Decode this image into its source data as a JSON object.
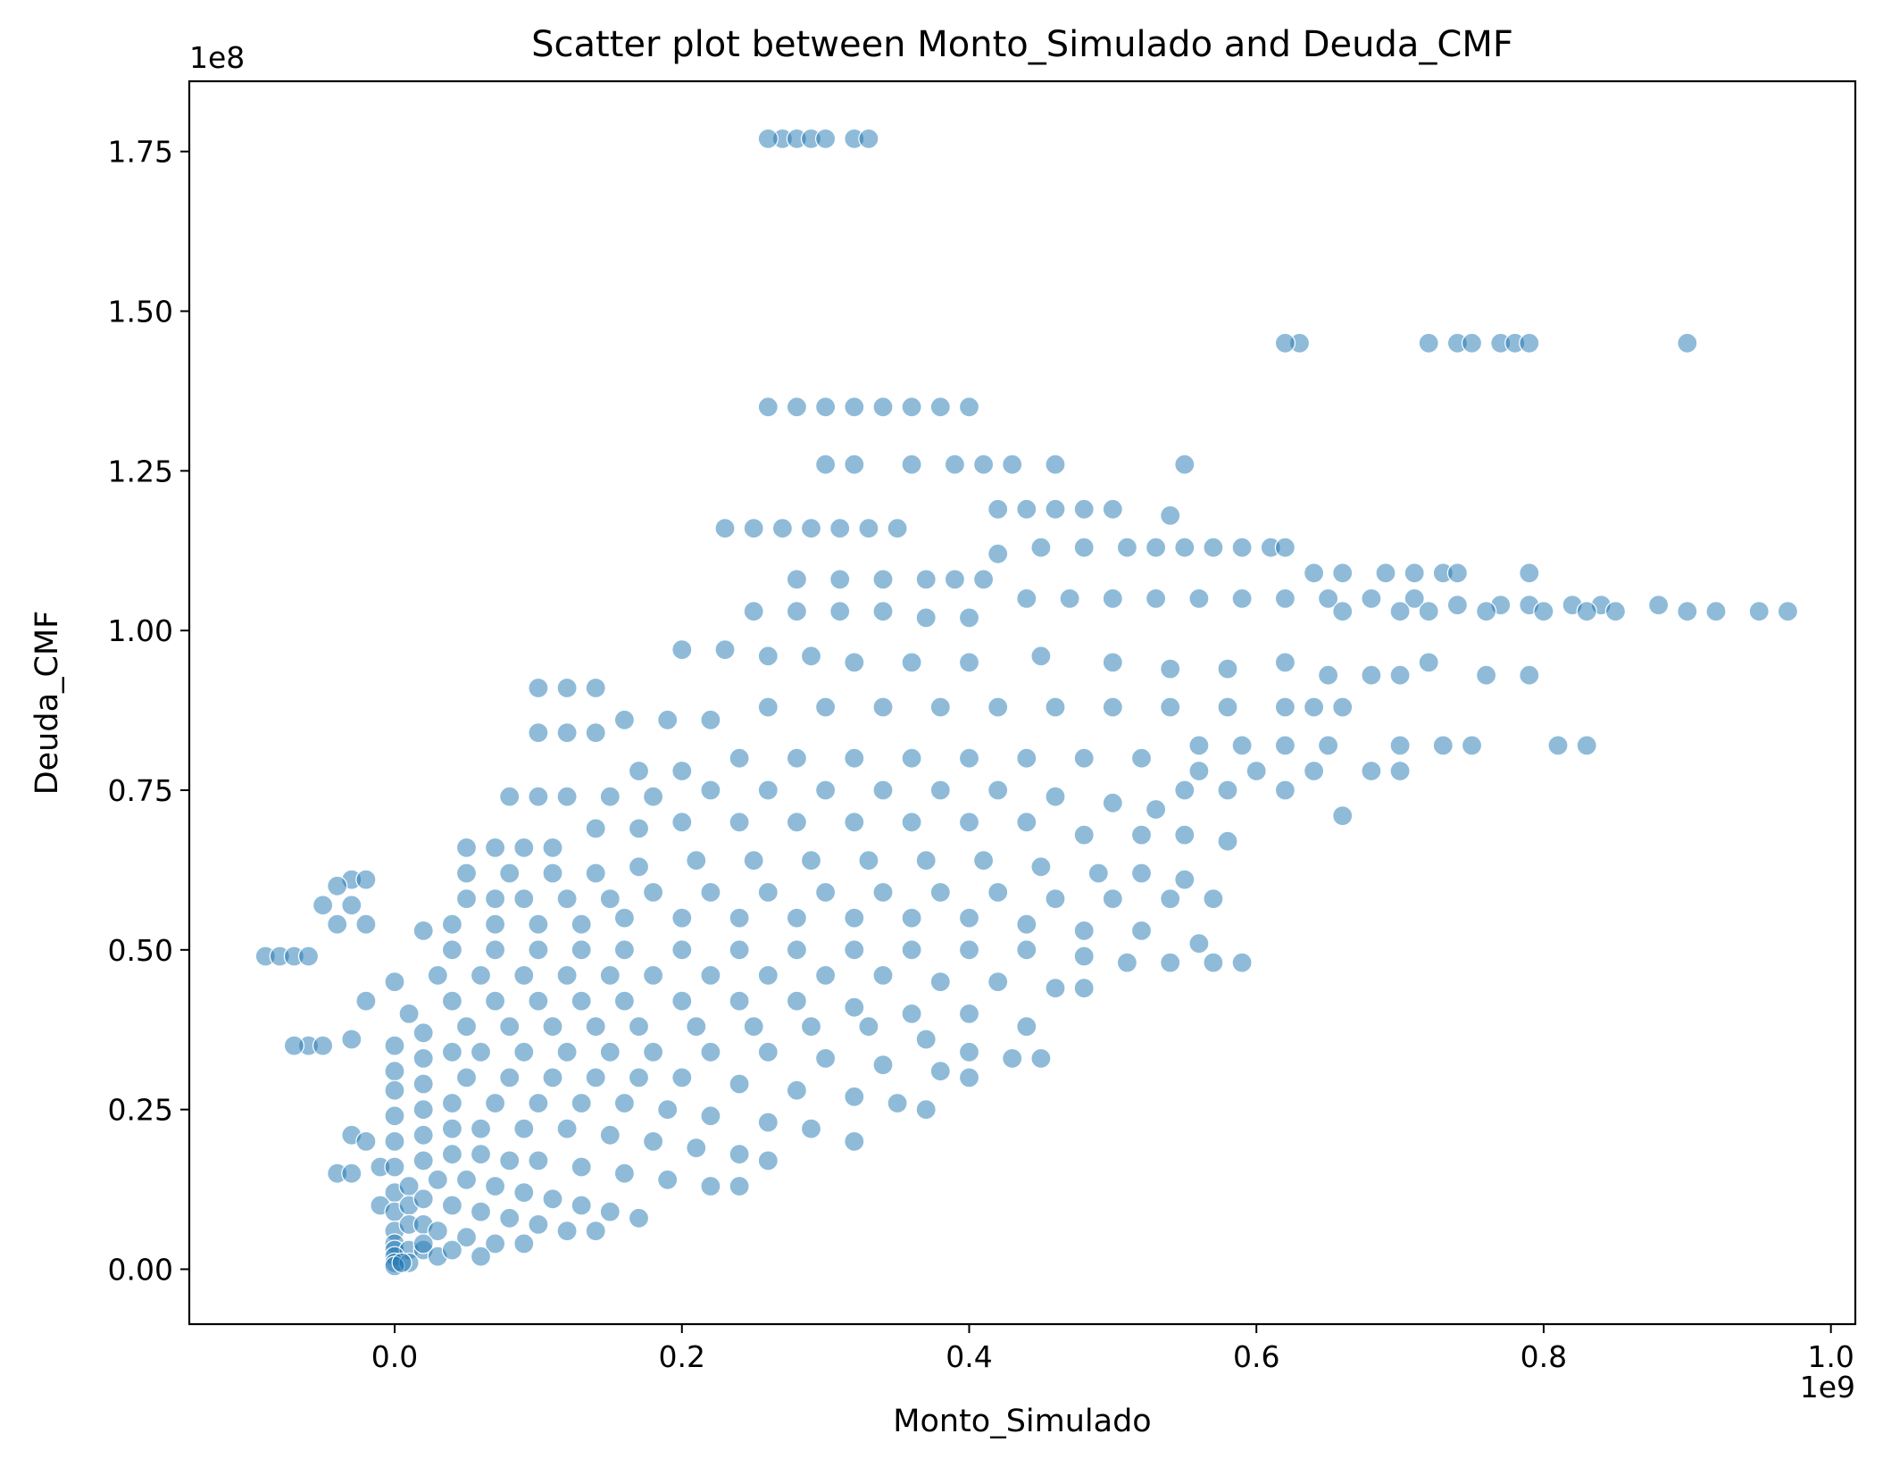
{
  "chart_data": {
    "type": "scatter",
    "title": "Scatter plot between Monto_Simulado and Deuda_CMF",
    "xlabel": "Monto_Simulado",
    "ylabel": "Deuda_CMF",
    "x_offset_label": "1e9",
    "y_offset_label": "1e8",
    "xlim": [
      -0.143,
      1.017
    ],
    "ylim": [
      -0.086,
      1.86
    ],
    "x_ticks": [
      0.0,
      0.2,
      0.4,
      0.6,
      0.8,
      1.0
    ],
    "x_tick_labels": [
      "0.0",
      "0.2",
      "0.4",
      "0.6",
      "0.8",
      "1.0"
    ],
    "y_ticks": [
      0.0,
      0.25,
      0.5,
      0.75,
      1.0,
      1.25,
      1.5,
      1.75
    ],
    "y_tick_labels": [
      "0.00",
      "0.25",
      "0.50",
      "0.75",
      "1.00",
      "1.25",
      "1.50",
      "1.75"
    ],
    "grid": false,
    "legend": "none",
    "marker_color": "#1f77b4",
    "marker_alpha": 0.5,
    "units_note_x": "values in units of 1e9",
    "units_note_y": "values in units of 1e8",
    "points": [
      [
        0.27,
        1.77
      ],
      [
        0.28,
        1.77
      ],
      [
        0.29,
        1.77
      ],
      [
        0.3,
        1.77
      ],
      [
        0.32,
        1.77
      ],
      [
        0.33,
        1.77
      ],
      [
        0.26,
        1.77
      ],
      [
        0.63,
        1.45
      ],
      [
        0.62,
        1.45
      ],
      [
        0.72,
        1.45
      ],
      [
        0.74,
        1.45
      ],
      [
        0.75,
        1.45
      ],
      [
        0.77,
        1.45
      ],
      [
        0.78,
        1.45
      ],
      [
        0.79,
        1.45
      ],
      [
        0.9,
        1.45
      ],
      [
        0.26,
        1.35
      ],
      [
        0.28,
        1.35
      ],
      [
        0.3,
        1.35
      ],
      [
        0.32,
        1.35
      ],
      [
        0.34,
        1.35
      ],
      [
        0.36,
        1.35
      ],
      [
        0.38,
        1.35
      ],
      [
        0.4,
        1.35
      ],
      [
        0.3,
        1.26
      ],
      [
        0.32,
        1.26
      ],
      [
        0.36,
        1.26
      ],
      [
        0.39,
        1.26
      ],
      [
        0.41,
        1.26
      ],
      [
        0.43,
        1.26
      ],
      [
        0.46,
        1.26
      ],
      [
        0.55,
        1.26
      ],
      [
        0.42,
        1.19
      ],
      [
        0.44,
        1.19
      ],
      [
        0.46,
        1.19
      ],
      [
        0.48,
        1.19
      ],
      [
        0.5,
        1.19
      ],
      [
        0.54,
        1.18
      ],
      [
        0.23,
        1.16
      ],
      [
        0.25,
        1.16
      ],
      [
        0.27,
        1.16
      ],
      [
        0.29,
        1.16
      ],
      [
        0.31,
        1.16
      ],
      [
        0.33,
        1.16
      ],
      [
        0.35,
        1.16
      ],
      [
        0.42,
        1.12
      ],
      [
        0.45,
        1.13
      ],
      [
        0.48,
        1.13
      ],
      [
        0.51,
        1.13
      ],
      [
        0.53,
        1.13
      ],
      [
        0.55,
        1.13
      ],
      [
        0.57,
        1.13
      ],
      [
        0.59,
        1.13
      ],
      [
        0.61,
        1.13
      ],
      [
        0.62,
        1.13
      ],
      [
        0.64,
        1.09
      ],
      [
        0.66,
        1.09
      ],
      [
        0.69,
        1.09
      ],
      [
        0.71,
        1.09
      ],
      [
        0.73,
        1.09
      ],
      [
        0.74,
        1.09
      ],
      [
        0.79,
        1.09
      ],
      [
        0.28,
        1.08
      ],
      [
        0.31,
        1.08
      ],
      [
        0.34,
        1.08
      ],
      [
        0.37,
        1.08
      ],
      [
        0.39,
        1.08
      ],
      [
        0.41,
        1.08
      ],
      [
        0.44,
        1.05
      ],
      [
        0.47,
        1.05
      ],
      [
        0.5,
        1.05
      ],
      [
        0.53,
        1.05
      ],
      [
        0.56,
        1.05
      ],
      [
        0.59,
        1.05
      ],
      [
        0.62,
        1.05
      ],
      [
        0.65,
        1.05
      ],
      [
        0.68,
        1.05
      ],
      [
        0.71,
        1.05
      ],
      [
        0.74,
        1.04
      ],
      [
        0.77,
        1.04
      ],
      [
        0.79,
        1.04
      ],
      [
        0.82,
        1.04
      ],
      [
        0.84,
        1.04
      ],
      [
        0.88,
        1.04
      ],
      [
        0.66,
        1.03
      ],
      [
        0.7,
        1.03
      ],
      [
        0.72,
        1.03
      ],
      [
        0.76,
        1.03
      ],
      [
        0.8,
        1.03
      ],
      [
        0.83,
        1.03
      ],
      [
        0.85,
        1.03
      ],
      [
        0.9,
        1.03
      ],
      [
        0.92,
        1.03
      ],
      [
        0.95,
        1.03
      ],
      [
        0.97,
        1.03
      ],
      [
        0.25,
        1.03
      ],
      [
        0.28,
        1.03
      ],
      [
        0.31,
        1.03
      ],
      [
        0.34,
        1.03
      ],
      [
        0.37,
        1.02
      ],
      [
        0.4,
        1.02
      ],
      [
        0.2,
        0.97
      ],
      [
        0.23,
        0.97
      ],
      [
        0.26,
        0.96
      ],
      [
        0.29,
        0.96
      ],
      [
        0.32,
        0.95
      ],
      [
        0.36,
        0.95
      ],
      [
        0.4,
        0.95
      ],
      [
        0.45,
        0.96
      ],
      [
        0.5,
        0.95
      ],
      [
        0.54,
        0.94
      ],
      [
        0.58,
        0.94
      ],
      [
        0.62,
        0.95
      ],
      [
        0.65,
        0.93
      ],
      [
        0.68,
        0.93
      ],
      [
        0.7,
        0.93
      ],
      [
        0.72,
        0.95
      ],
      [
        0.76,
        0.93
      ],
      [
        0.79,
        0.93
      ],
      [
        0.1,
        0.91
      ],
      [
        0.12,
        0.91
      ],
      [
        0.14,
        0.91
      ],
      [
        0.16,
        0.86
      ],
      [
        0.19,
        0.86
      ],
      [
        0.22,
        0.86
      ],
      [
        0.26,
        0.88
      ],
      [
        0.3,
        0.88
      ],
      [
        0.34,
        0.88
      ],
      [
        0.38,
        0.88
      ],
      [
        0.42,
        0.88
      ],
      [
        0.46,
        0.88
      ],
      [
        0.5,
        0.88
      ],
      [
        0.54,
        0.88
      ],
      [
        0.58,
        0.88
      ],
      [
        0.62,
        0.88
      ],
      [
        0.64,
        0.88
      ],
      [
        0.66,
        0.88
      ],
      [
        0.56,
        0.82
      ],
      [
        0.59,
        0.82
      ],
      [
        0.62,
        0.82
      ],
      [
        0.65,
        0.82
      ],
      [
        0.7,
        0.82
      ],
      [
        0.73,
        0.82
      ],
      [
        0.75,
        0.82
      ],
      [
        0.81,
        0.82
      ],
      [
        0.83,
        0.82
      ],
      [
        0.1,
        0.84
      ],
      [
        0.12,
        0.84
      ],
      [
        0.14,
        0.84
      ],
      [
        0.17,
        0.78
      ],
      [
        0.2,
        0.78
      ],
      [
        0.24,
        0.8
      ],
      [
        0.28,
        0.8
      ],
      [
        0.32,
        0.8
      ],
      [
        0.36,
        0.8
      ],
      [
        0.4,
        0.8
      ],
      [
        0.44,
        0.8
      ],
      [
        0.48,
        0.8
      ],
      [
        0.52,
        0.8
      ],
      [
        0.56,
        0.78
      ],
      [
        0.6,
        0.78
      ],
      [
        0.64,
        0.78
      ],
      [
        0.68,
        0.78
      ],
      [
        0.7,
        0.78
      ],
      [
        0.66,
        0.71
      ],
      [
        0.55,
        0.75
      ],
      [
        0.58,
        0.75
      ],
      [
        0.62,
        0.75
      ],
      [
        0.08,
        0.74
      ],
      [
        0.1,
        0.74
      ],
      [
        0.12,
        0.74
      ],
      [
        0.15,
        0.74
      ],
      [
        0.18,
        0.74
      ],
      [
        0.22,
        0.75
      ],
      [
        0.26,
        0.75
      ],
      [
        0.3,
        0.75
      ],
      [
        0.34,
        0.75
      ],
      [
        0.38,
        0.75
      ],
      [
        0.42,
        0.75
      ],
      [
        0.46,
        0.74
      ],
      [
        0.5,
        0.73
      ],
      [
        0.53,
        0.72
      ],
      [
        0.05,
        0.66
      ],
      [
        0.07,
        0.66
      ],
      [
        0.09,
        0.66
      ],
      [
        0.11,
        0.66
      ],
      [
        0.14,
        0.69
      ],
      [
        0.17,
        0.69
      ],
      [
        0.2,
        0.7
      ],
      [
        0.24,
        0.7
      ],
      [
        0.28,
        0.7
      ],
      [
        0.32,
        0.7
      ],
      [
        0.36,
        0.7
      ],
      [
        0.4,
        0.7
      ],
      [
        0.44,
        0.7
      ],
      [
        0.48,
        0.68
      ],
      [
        0.52,
        0.68
      ],
      [
        0.55,
        0.68
      ],
      [
        0.58,
        0.67
      ],
      [
        -0.03,
        0.61
      ],
      [
        -0.04,
        0.6
      ],
      [
        -0.02,
        0.61
      ],
      [
        -0.05,
        0.57
      ],
      [
        -0.03,
        0.57
      ],
      [
        -0.04,
        0.54
      ],
      [
        -0.02,
        0.54
      ],
      [
        0.05,
        0.62
      ],
      [
        0.08,
        0.62
      ],
      [
        0.11,
        0.62
      ],
      [
        0.14,
        0.62
      ],
      [
        0.17,
        0.63
      ],
      [
        0.21,
        0.64
      ],
      [
        0.25,
        0.64
      ],
      [
        0.29,
        0.64
      ],
      [
        0.33,
        0.64
      ],
      [
        0.37,
        0.64
      ],
      [
        0.41,
        0.64
      ],
      [
        0.45,
        0.63
      ],
      [
        0.49,
        0.62
      ],
      [
        0.52,
        0.62
      ],
      [
        0.55,
        0.61
      ],
      [
        0.05,
        0.58
      ],
      [
        0.07,
        0.58
      ],
      [
        0.09,
        0.58
      ],
      [
        0.12,
        0.58
      ],
      [
        0.15,
        0.58
      ],
      [
        0.18,
        0.59
      ],
      [
        0.22,
        0.59
      ],
      [
        0.26,
        0.59
      ],
      [
        0.3,
        0.59
      ],
      [
        0.34,
        0.59
      ],
      [
        0.38,
        0.59
      ],
      [
        0.42,
        0.59
      ],
      [
        0.46,
        0.58
      ],
      [
        0.5,
        0.58
      ],
      [
        0.54,
        0.58
      ],
      [
        0.57,
        0.58
      ],
      [
        -0.09,
        0.49
      ],
      [
        -0.08,
        0.49
      ],
      [
        -0.07,
        0.49
      ],
      [
        -0.06,
        0.49
      ],
      [
        0.02,
        0.53
      ],
      [
        0.04,
        0.54
      ],
      [
        0.07,
        0.54
      ],
      [
        0.1,
        0.54
      ],
      [
        0.13,
        0.54
      ],
      [
        0.16,
        0.55
      ],
      [
        0.2,
        0.55
      ],
      [
        0.24,
        0.55
      ],
      [
        0.28,
        0.55
      ],
      [
        0.32,
        0.55
      ],
      [
        0.36,
        0.55
      ],
      [
        0.4,
        0.55
      ],
      [
        0.44,
        0.54
      ],
      [
        0.48,
        0.53
      ],
      [
        0.52,
        0.53
      ],
      [
        0.56,
        0.51
      ],
      [
        0.04,
        0.5
      ],
      [
        0.07,
        0.5
      ],
      [
        0.1,
        0.5
      ],
      [
        0.13,
        0.5
      ],
      [
        0.16,
        0.5
      ],
      [
        0.2,
        0.5
      ],
      [
        0.24,
        0.5
      ],
      [
        0.28,
        0.5
      ],
      [
        0.32,
        0.5
      ],
      [
        0.36,
        0.5
      ],
      [
        0.4,
        0.5
      ],
      [
        0.44,
        0.5
      ],
      [
        0.48,
        0.49
      ],
      [
        0.51,
        0.48
      ],
      [
        0.54,
        0.48
      ],
      [
        0.57,
        0.48
      ],
      [
        0.59,
        0.48
      ],
      [
        0.0,
        0.45
      ],
      [
        0.03,
        0.46
      ],
      [
        0.06,
        0.46
      ],
      [
        0.09,
        0.46
      ],
      [
        0.12,
        0.46
      ],
      [
        0.15,
        0.46
      ],
      [
        0.18,
        0.46
      ],
      [
        0.22,
        0.46
      ],
      [
        0.26,
        0.46
      ],
      [
        0.3,
        0.46
      ],
      [
        0.34,
        0.46
      ],
      [
        0.38,
        0.45
      ],
      [
        0.42,
        0.45
      ],
      [
        0.46,
        0.44
      ],
      [
        0.48,
        0.44
      ],
      [
        -0.02,
        0.42
      ],
      [
        0.01,
        0.4
      ],
      [
        0.04,
        0.42
      ],
      [
        0.07,
        0.42
      ],
      [
        0.1,
        0.42
      ],
      [
        0.13,
        0.42
      ],
      [
        0.16,
        0.42
      ],
      [
        0.2,
        0.42
      ],
      [
        0.24,
        0.42
      ],
      [
        0.28,
        0.42
      ],
      [
        0.32,
        0.41
      ],
      [
        0.36,
        0.4
      ],
      [
        0.4,
        0.4
      ],
      [
        0.44,
        0.38
      ],
      [
        -0.06,
        0.35
      ],
      [
        -0.07,
        0.35
      ],
      [
        -0.05,
        0.35
      ],
      [
        -0.03,
        0.36
      ],
      [
        0.0,
        0.35
      ],
      [
        0.02,
        0.37
      ],
      [
        0.05,
        0.38
      ],
      [
        0.08,
        0.38
      ],
      [
        0.11,
        0.38
      ],
      [
        0.14,
        0.38
      ],
      [
        0.17,
        0.38
      ],
      [
        0.21,
        0.38
      ],
      [
        0.25,
        0.38
      ],
      [
        0.29,
        0.38
      ],
      [
        0.33,
        0.38
      ],
      [
        0.37,
        0.36
      ],
      [
        0.4,
        0.34
      ],
      [
        0.43,
        0.33
      ],
      [
        0.45,
        0.33
      ],
      [
        0.0,
        0.31
      ],
      [
        0.02,
        0.33
      ],
      [
        0.04,
        0.34
      ],
      [
        0.06,
        0.34
      ],
      [
        0.09,
        0.34
      ],
      [
        0.12,
        0.34
      ],
      [
        0.15,
        0.34
      ],
      [
        0.18,
        0.34
      ],
      [
        0.22,
        0.34
      ],
      [
        0.26,
        0.34
      ],
      [
        0.3,
        0.33
      ],
      [
        0.34,
        0.32
      ],
      [
        0.38,
        0.31
      ],
      [
        0.4,
        0.3
      ],
      [
        0.0,
        0.28
      ],
      [
        0.02,
        0.29
      ],
      [
        0.05,
        0.3
      ],
      [
        0.08,
        0.3
      ],
      [
        0.11,
        0.3
      ],
      [
        0.14,
        0.3
      ],
      [
        0.17,
        0.3
      ],
      [
        0.2,
        0.3
      ],
      [
        0.24,
        0.29
      ],
      [
        0.28,
        0.28
      ],
      [
        0.32,
        0.27
      ],
      [
        0.35,
        0.26
      ],
      [
        0.37,
        0.25
      ],
      [
        0.0,
        0.24
      ],
      [
        0.02,
        0.25
      ],
      [
        0.04,
        0.26
      ],
      [
        0.07,
        0.26
      ],
      [
        0.1,
        0.26
      ],
      [
        0.13,
        0.26
      ],
      [
        0.16,
        0.26
      ],
      [
        0.19,
        0.25
      ],
      [
        0.22,
        0.24
      ],
      [
        0.26,
        0.23
      ],
      [
        0.29,
        0.22
      ],
      [
        0.32,
        0.2
      ],
      [
        -0.03,
        0.21
      ],
      [
        -0.02,
        0.2
      ],
      [
        0.0,
        0.2
      ],
      [
        0.02,
        0.21
      ],
      [
        0.04,
        0.22
      ],
      [
        0.06,
        0.22
      ],
      [
        0.09,
        0.22
      ],
      [
        0.12,
        0.22
      ],
      [
        0.15,
        0.21
      ],
      [
        0.18,
        0.2
      ],
      [
        0.21,
        0.19
      ],
      [
        0.24,
        0.18
      ],
      [
        0.26,
        0.17
      ],
      [
        -0.04,
        0.15
      ],
      [
        -0.03,
        0.15
      ],
      [
        -0.01,
        0.16
      ],
      [
        0.0,
        0.16
      ],
      [
        0.02,
        0.17
      ],
      [
        0.04,
        0.18
      ],
      [
        0.06,
        0.18
      ],
      [
        0.08,
        0.17
      ],
      [
        0.1,
        0.17
      ],
      [
        0.13,
        0.16
      ],
      [
        0.16,
        0.15
      ],
      [
        0.19,
        0.14
      ],
      [
        0.22,
        0.13
      ],
      [
        0.24,
        0.13
      ],
      [
        0.0,
        0.12
      ],
      [
        0.01,
        0.13
      ],
      [
        0.03,
        0.14
      ],
      [
        0.05,
        0.14
      ],
      [
        0.07,
        0.13
      ],
      [
        0.09,
        0.12
      ],
      [
        0.11,
        0.11
      ],
      [
        0.13,
        0.1
      ],
      [
        0.15,
        0.09
      ],
      [
        0.17,
        0.08
      ],
      [
        -0.01,
        0.1
      ],
      [
        0.0,
        0.09
      ],
      [
        0.01,
        0.1
      ],
      [
        0.02,
        0.11
      ],
      [
        0.04,
        0.1
      ],
      [
        0.06,
        0.09
      ],
      [
        0.08,
        0.08
      ],
      [
        0.1,
        0.07
      ],
      [
        0.12,
        0.06
      ],
      [
        0.14,
        0.06
      ],
      [
        0.0,
        0.06
      ],
      [
        0.01,
        0.07
      ],
      [
        0.02,
        0.07
      ],
      [
        0.03,
        0.06
      ],
      [
        0.05,
        0.05
      ],
      [
        0.07,
        0.04
      ],
      [
        0.09,
        0.04
      ],
      [
        0.0,
        0.04
      ],
      [
        0.0,
        0.03
      ],
      [
        0.01,
        0.03
      ],
      [
        0.02,
        0.03
      ],
      [
        0.03,
        0.02
      ],
      [
        0.0,
        0.02
      ],
      [
        0.0,
        0.01
      ],
      [
        0.01,
        0.01
      ],
      [
        0.0,
        0.005
      ],
      [
        0.005,
        0.01
      ],
      [
        0.02,
        0.04
      ],
      [
        0.04,
        0.03
      ],
      [
        0.06,
        0.02
      ]
    ]
  }
}
